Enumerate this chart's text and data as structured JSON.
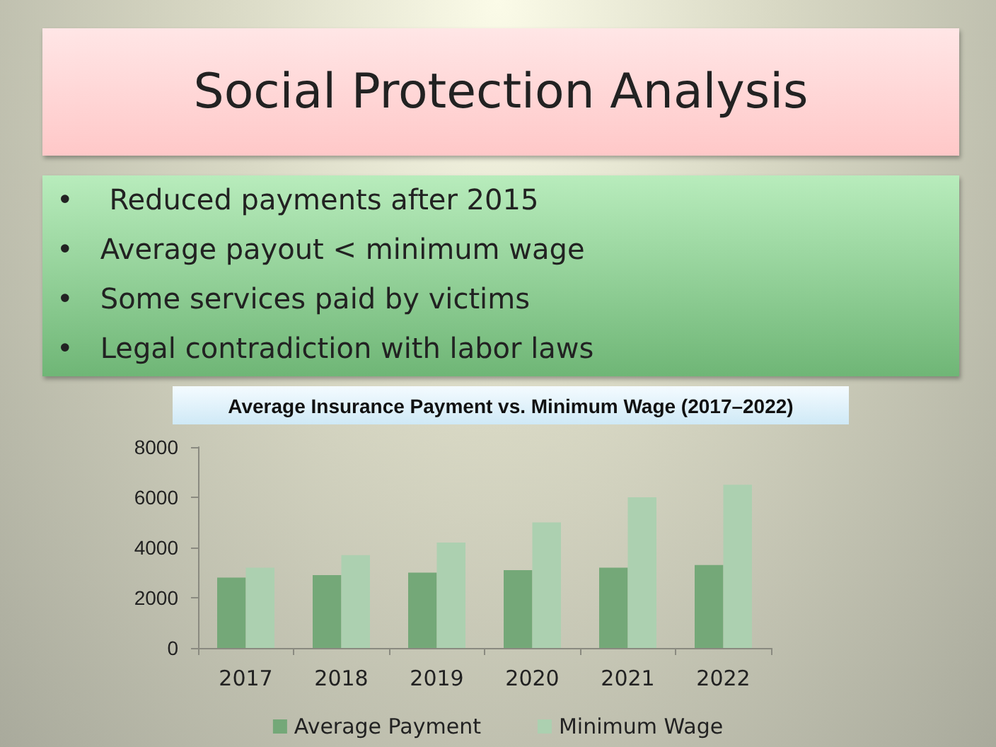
{
  "chart_data": {
    "type": "bar",
    "title": "Social Protection Analysis",
    "subtitle": "Average Insurance Payment vs. Minimum Wage (2017–2022)",
    "annotations": [
      "•    Reduced payments after 2015",
      "•   Average payout < minimum wage",
      "•   Some services paid by victims",
      "•   Legal contradiction with labor laws"
    ],
    "categories": [
      "2017",
      "2018",
      "2019",
      "2020",
      "2021",
      "2022"
    ],
    "series": [
      {
        "name": "Average Payment",
        "color": "#74a878",
        "values": [
          2800,
          2900,
          3000,
          3100,
          3200,
          3300
        ]
      },
      {
        "name": "Minimum Wage",
        "color": "#acd0b0",
        "values": [
          3200,
          3700,
          4200,
          5000,
          6000,
          6500
        ]
      }
    ],
    "ylim": [
      0,
      8000
    ],
    "yticks": [
      0,
      2000,
      4000,
      6000,
      8000
    ],
    "grid": false,
    "legend": "bottom"
  }
}
